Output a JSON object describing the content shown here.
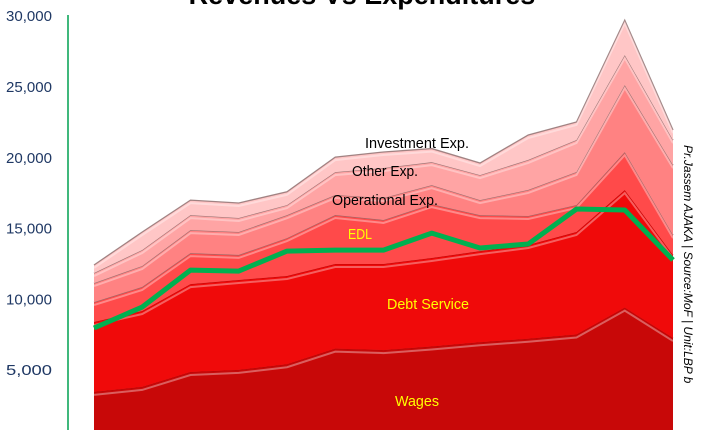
{
  "chart_data": {
    "type": "area",
    "stacked": true,
    "title": "Revenues Vs Expenditures",
    "credit": "Pr.Jassem AJAKA | Source:MoF | Unit:LBP b",
    "ylim": [
      0,
      30000
    ],
    "yticks": [
      "5,000",
      "10,000",
      "15,000",
      "20,000",
      "25,000",
      "30,000"
    ],
    "ytick_values": [
      5000,
      10000,
      15000,
      20000,
      25000,
      30000
    ],
    "grid": false,
    "axis_color": "#00a050",
    "series": [
      {
        "name": "Wages",
        "color": "#c80808",
        "label_color": "#ffff00",
        "values": [
          3400,
          3750,
          4800,
          4950,
          5350,
          6450,
          6350,
          6600,
          6900,
          7150,
          7450,
          9350,
          7200
        ]
      },
      {
        "name": "Debt Service",
        "color": "#f00a0a",
        "label_color": "#ffff00",
        "values": [
          4930,
          5360,
          6210,
          6350,
          6230,
          5980,
          6080,
          6250,
          6440,
          6620,
          7240,
          8300,
          5860
        ]
      },
      {
        "name": "EDL",
        "color": "#ff4a4a",
        "label_color": "#ffff00",
        "values": [
          1410,
          1700,
          2190,
          1770,
          2680,
          3460,
          3110,
          3810,
          2540,
          2050,
          1910,
          2680,
          1410
        ]
      },
      {
        "name": "Operational Exp.",
        "color": "#ff8282",
        "label_color": "#000000",
        "values": [
          1340,
          1480,
          1620,
          1620,
          1620,
          1410,
          1550,
          1340,
          1060,
          1840,
          2330,
          4730,
          4940
        ]
      },
      {
        "name": "Other Exp.",
        "color": "#ffa4a4",
        "label_color": "#000000",
        "values": [
          710,
          1130,
          1060,
          990,
          710,
          1620,
          2120,
          1620,
          1770,
          2120,
          2260,
          2120,
          1770
        ]
      },
      {
        "name": "Investment Exp.",
        "color": "#ffc6c6",
        "label_color": "#000000",
        "values": [
          570,
          1270,
          1060,
          1060,
          940,
          1060,
          1130,
          960,
          850,
          1760,
          1270,
          2470,
          710
        ]
      }
    ],
    "line_series": {
      "type": "line",
      "color": "#00b050",
      "values": [
        7910,
        9390,
        12000,
        11930,
        13340,
        13410,
        13410,
        14610,
        13560,
        13840,
        16310,
        16240,
        12710
      ]
    }
  }
}
